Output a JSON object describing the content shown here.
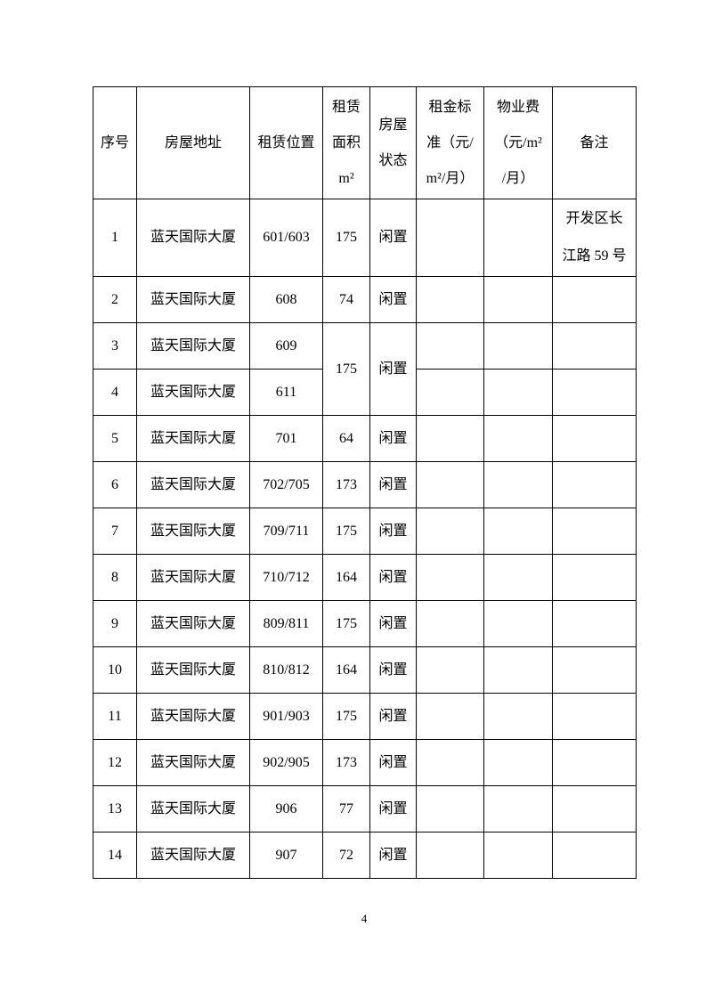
{
  "page": {
    "number": "4"
  },
  "table": {
    "columns": [
      {
        "key": "index",
        "label": "序号"
      },
      {
        "key": "address",
        "label": "房屋地址"
      },
      {
        "key": "location",
        "label": "租赁位置"
      },
      {
        "key": "area",
        "label": "租赁\n面积\nm²"
      },
      {
        "key": "status",
        "label": "房屋\n状态"
      },
      {
        "key": "rent",
        "label": "租金标\n准（元/\nm²/月）"
      },
      {
        "key": "fee",
        "label": "物业费\n（元/m²\n/月）"
      },
      {
        "key": "remark",
        "label": "备注"
      }
    ],
    "rows": [
      {
        "tall": true,
        "cells": [
          {
            "v": "1"
          },
          {
            "v": "蓝天国际大厦"
          },
          {
            "v": "601/603"
          },
          {
            "v": "175"
          },
          {
            "v": "闲置"
          },
          {
            "v": ""
          },
          {
            "v": ""
          },
          {
            "v": "开发区长\n江路 59 号",
            "multiline": true
          }
        ]
      },
      {
        "cells": [
          {
            "v": "2"
          },
          {
            "v": "蓝天国际大厦"
          },
          {
            "v": "608"
          },
          {
            "v": "74"
          },
          {
            "v": "闲置"
          },
          {
            "v": ""
          },
          {
            "v": ""
          },
          {
            "v": ""
          }
        ]
      },
      {
        "cells": [
          {
            "v": "3"
          },
          {
            "v": "蓝天国际大厦"
          },
          {
            "v": "609"
          },
          {
            "v": "175",
            "rowspan": 2
          },
          {
            "v": "闲置",
            "rowspan": 2
          },
          {
            "v": ""
          },
          {
            "v": ""
          },
          {
            "v": ""
          }
        ]
      },
      {
        "cells": [
          {
            "v": "4"
          },
          {
            "v": "蓝天国际大厦"
          },
          {
            "v": "611"
          },
          null,
          null,
          {
            "v": ""
          },
          {
            "v": ""
          },
          {
            "v": ""
          }
        ]
      },
      {
        "cells": [
          {
            "v": "5"
          },
          {
            "v": "蓝天国际大厦"
          },
          {
            "v": "701"
          },
          {
            "v": "64"
          },
          {
            "v": "闲置"
          },
          {
            "v": ""
          },
          {
            "v": ""
          },
          {
            "v": ""
          }
        ]
      },
      {
        "cells": [
          {
            "v": "6"
          },
          {
            "v": "蓝天国际大厦"
          },
          {
            "v": "702/705"
          },
          {
            "v": "173"
          },
          {
            "v": "闲置"
          },
          {
            "v": ""
          },
          {
            "v": ""
          },
          {
            "v": ""
          }
        ]
      },
      {
        "cells": [
          {
            "v": "7"
          },
          {
            "v": "蓝天国际大厦"
          },
          {
            "v": "709/711"
          },
          {
            "v": "175"
          },
          {
            "v": "闲置"
          },
          {
            "v": ""
          },
          {
            "v": ""
          },
          {
            "v": ""
          }
        ]
      },
      {
        "cells": [
          {
            "v": "8"
          },
          {
            "v": "蓝天国际大厦"
          },
          {
            "v": "710/712"
          },
          {
            "v": "164"
          },
          {
            "v": "闲置"
          },
          {
            "v": ""
          },
          {
            "v": ""
          },
          {
            "v": ""
          }
        ]
      },
      {
        "cells": [
          {
            "v": "9"
          },
          {
            "v": "蓝天国际大厦"
          },
          {
            "v": "809/811"
          },
          {
            "v": "175"
          },
          {
            "v": "闲置"
          },
          {
            "v": ""
          },
          {
            "v": ""
          },
          {
            "v": ""
          }
        ]
      },
      {
        "cells": [
          {
            "v": "10"
          },
          {
            "v": "蓝天国际大厦"
          },
          {
            "v": "810/812"
          },
          {
            "v": "164"
          },
          {
            "v": "闲置"
          },
          {
            "v": ""
          },
          {
            "v": ""
          },
          {
            "v": ""
          }
        ]
      },
      {
        "cells": [
          {
            "v": "11"
          },
          {
            "v": "蓝天国际大厦"
          },
          {
            "v": "901/903"
          },
          {
            "v": "175"
          },
          {
            "v": "闲置"
          },
          {
            "v": ""
          },
          {
            "v": ""
          },
          {
            "v": ""
          }
        ]
      },
      {
        "cells": [
          {
            "v": "12"
          },
          {
            "v": "蓝天国际大厦"
          },
          {
            "v": "902/905"
          },
          {
            "v": "173"
          },
          {
            "v": "闲置"
          },
          {
            "v": ""
          },
          {
            "v": ""
          },
          {
            "v": ""
          }
        ]
      },
      {
        "cells": [
          {
            "v": "13"
          },
          {
            "v": "蓝天国际大厦"
          },
          {
            "v": "906"
          },
          {
            "v": "77"
          },
          {
            "v": "闲置"
          },
          {
            "v": ""
          },
          {
            "v": ""
          },
          {
            "v": ""
          }
        ]
      },
      {
        "cells": [
          {
            "v": "14"
          },
          {
            "v": "蓝天国际大厦"
          },
          {
            "v": "907"
          },
          {
            "v": "72"
          },
          {
            "v": "闲置"
          },
          {
            "v": ""
          },
          {
            "v": ""
          },
          {
            "v": ""
          }
        ]
      }
    ]
  }
}
